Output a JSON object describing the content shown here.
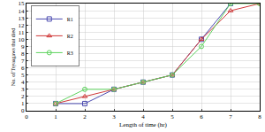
{
  "chart_data": {
    "type": "line",
    "x": [
      1,
      2,
      3,
      4,
      5,
      6,
      7,
      8
    ],
    "series": [
      {
        "name": "R1",
        "color": "#4b4bb0",
        "marker": "square",
        "values": [
          1,
          1,
          3,
          4,
          5,
          10,
          15,
          null
        ]
      },
      {
        "name": "R2",
        "color": "#d03a3a",
        "marker": "triangle",
        "values": [
          1,
          2,
          3,
          4,
          5,
          10,
          14,
          15
        ]
      },
      {
        "name": "R3",
        "color": "#5fd35f",
        "marker": "circle",
        "values": [
          1,
          3,
          3,
          4,
          5,
          9,
          15,
          15
        ]
      }
    ],
    "x_label": "Length of time (hr)",
    "y_label": "No. of Tsyaagaws that died",
    "xlim": [
      0,
      8
    ],
    "xticks": [
      0,
      1,
      2,
      3,
      4,
      5,
      6,
      7,
      8
    ],
    "ylim": [
      0,
      15
    ],
    "yticks": [
      0,
      1,
      2,
      3,
      4,
      5,
      6,
      7,
      8,
      9,
      10,
      11,
      12,
      13,
      14,
      15
    ],
    "grid": true,
    "legend": "top-left"
  }
}
